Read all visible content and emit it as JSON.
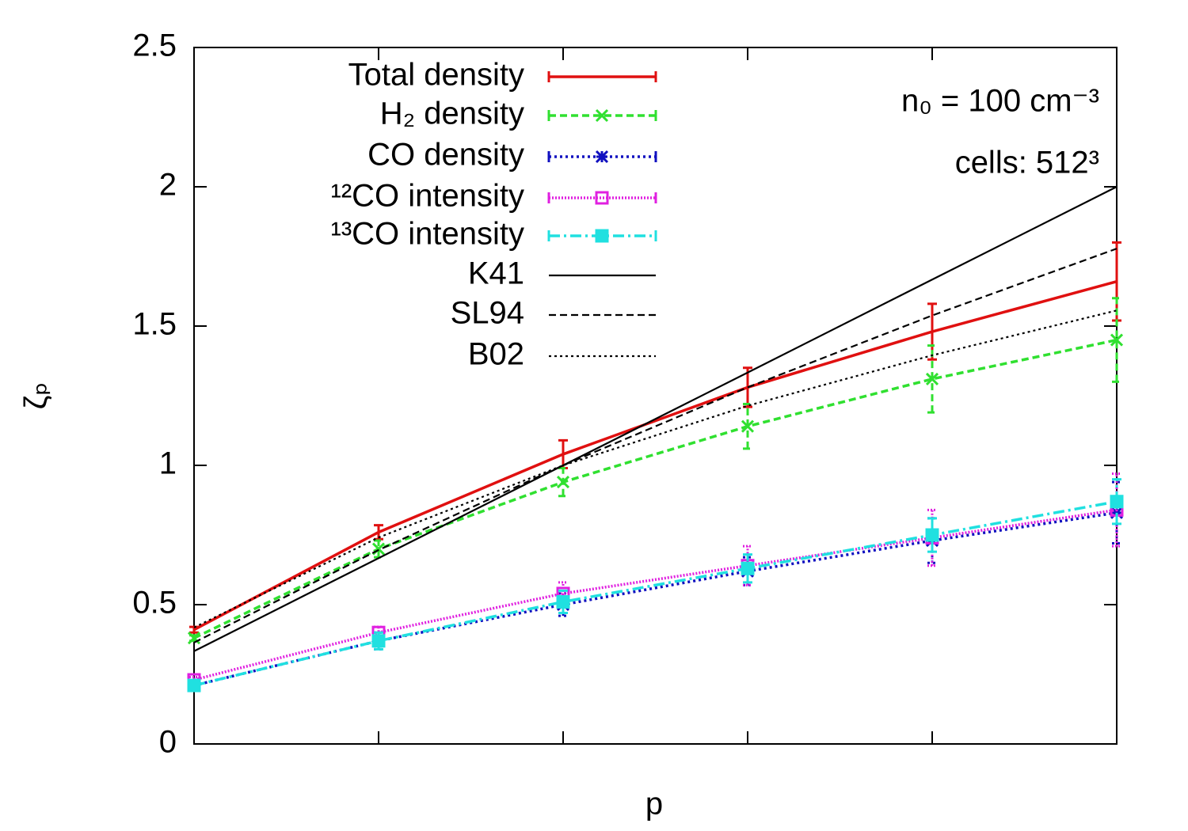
{
  "chart_data": {
    "type": "line",
    "xlabel": "p",
    "ylabel": "ζₚ",
    "annotations": [
      "n₀ = 100 cm⁻³",
      "cells: 512³"
    ],
    "x": [
      1,
      2,
      3,
      4,
      5,
      6
    ],
    "xlim": [
      1,
      6
    ],
    "ylim": [
      0,
      2.5
    ],
    "yticks": [
      0,
      0.5,
      1,
      1.5,
      2,
      2.5
    ],
    "legend": "top-center",
    "series": [
      {
        "name": "Total density",
        "color": "#e01010",
        "style": "solid",
        "marker": "none",
        "values": [
          0.41,
          0.76,
          1.04,
          1.28,
          1.48,
          1.66
        ],
        "errors": [
          0.01,
          0.025,
          0.05,
          0.07,
          0.1,
          0.14
        ]
      },
      {
        "name": "H₂ density",
        "color": "#30e030",
        "style": "dashed",
        "marker": "cross",
        "values": [
          0.38,
          0.7,
          0.94,
          1.14,
          1.31,
          1.45
        ],
        "errors": [
          0.01,
          0.03,
          0.05,
          0.08,
          0.12,
          0.15
        ]
      },
      {
        "name": "CO density",
        "color": "#1010c0",
        "style": "dotted",
        "marker": "star",
        "values": [
          0.21,
          0.37,
          0.5,
          0.62,
          0.73,
          0.83
        ],
        "errors": [
          0.01,
          0.03,
          0.04,
          0.05,
          0.08,
          0.11
        ]
      },
      {
        "name": "¹²CO intensity",
        "color": "#e020e0",
        "style": "fine-dotted",
        "marker": "open-square",
        "values": [
          0.23,
          0.4,
          0.54,
          0.64,
          0.74,
          0.84
        ],
        "errors": [
          0.01,
          0.02,
          0.04,
          0.07,
          0.1,
          0.13
        ]
      },
      {
        "name": "¹³CO intensity",
        "color": "#20e0e0",
        "style": "dash-dot",
        "marker": "filled-square",
        "values": [
          0.21,
          0.37,
          0.51,
          0.63,
          0.75,
          0.87
        ],
        "errors": [
          0.01,
          0.03,
          0.04,
          0.05,
          0.06,
          0.08
        ]
      },
      {
        "name": "K41",
        "color": "#000000",
        "style": "solid",
        "marker": "none",
        "values": [
          0.333,
          0.667,
          1.0,
          1.333,
          1.667,
          2.0
        ]
      },
      {
        "name": "SL94",
        "color": "#000000",
        "style": "dashed",
        "marker": "none",
        "values": [
          0.364,
          0.696,
          1.0,
          1.28,
          1.538,
          1.778
        ]
      },
      {
        "name": "B02",
        "color": "#000000",
        "style": "dotted",
        "marker": "none",
        "values": [
          0.418,
          0.741,
          1.0,
          1.214,
          1.395,
          1.556
        ]
      }
    ]
  }
}
